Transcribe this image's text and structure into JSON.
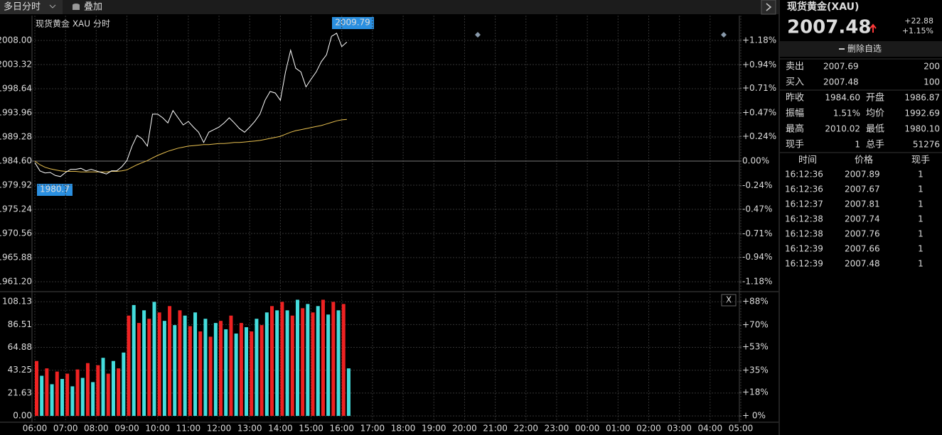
{
  "toolbar": {
    "period": "多日分时",
    "overlay": "叠加"
  },
  "volume_panel": {
    "close": "X"
  },
  "chart_data": [
    {
      "type": "line",
      "title": "现货黄金 XAU",
      "subtitle": "分时",
      "x": [
        "06:00",
        "06:10",
        "06:20",
        "06:30",
        "06:40",
        "06:50",
        "07:00",
        "07:10",
        "07:20",
        "07:30",
        "07:40",
        "07:50",
        "08:00",
        "08:10",
        "08:20",
        "08:30",
        "08:40",
        "08:50",
        "09:00",
        "09:10",
        "09:20",
        "09:30",
        "09:40",
        "09:50",
        "10:00",
        "10:10",
        "10:20",
        "10:30",
        "10:40",
        "10:50",
        "11:00",
        "11:10",
        "11:20",
        "11:30",
        "11:40",
        "11:50",
        "12:00",
        "12:10",
        "12:20",
        "12:30",
        "12:40",
        "12:50",
        "13:00",
        "13:10",
        "13:20",
        "13:30",
        "13:40",
        "13:50",
        "14:00",
        "14:10",
        "14:20",
        "14:30",
        "14:40",
        "14:50",
        "15:00",
        "15:10",
        "15:20",
        "15:30",
        "15:40",
        "15:50",
        "16:00",
        "16:10"
      ],
      "series": [
        {
          "color": "#ffffff",
          "values": [
            1984.3,
            1982.7,
            1982.3,
            1982.4,
            1981.8,
            1981.6,
            1982.4,
            1983.0,
            1983.0,
            1983.2,
            1982.7,
            1983.0,
            1982.7,
            1982.4,
            1982.1,
            1982.7,
            1982.7,
            1983.5,
            1984.7,
            1987.5,
            1989.6,
            1988.9,
            1987.5,
            1993.7,
            1993.7,
            1993.0,
            1992.0,
            1994.4,
            1993.0,
            1991.6,
            1992.3,
            1991.2,
            1990.2,
            1988.2,
            1990.2,
            1990.7,
            1991.2,
            1992.0,
            1993.0,
            1992.0,
            1990.9,
            1990.2,
            1991.2,
            1992.3,
            1993.7,
            1996.4,
            1998.1,
            1997.8,
            1996.4,
            2001.9,
            2006.1,
            2002.6,
            2001.9,
            1999.0,
            2000.5,
            2001.9,
            2003.9,
            2005.2,
            2008.8,
            2009.4,
            2006.8,
            2007.7
          ]
        },
        {
          "color": "#e8c050",
          "values": [
            1984.6,
            1983.9,
            1983.4,
            1983.1,
            1982.9,
            1982.7,
            1982.6,
            1982.6,
            1982.6,
            1982.5,
            1982.5,
            1982.5,
            1982.5,
            1982.5,
            1982.5,
            1982.6,
            1982.6,
            1982.7,
            1982.9,
            1983.4,
            1983.9,
            1984.3,
            1984.7,
            1985.2,
            1985.7,
            1986.1,
            1986.5,
            1986.8,
            1987.1,
            1987.3,
            1987.5,
            1987.6,
            1987.7,
            1987.8,
            1987.8,
            1987.9,
            1988.0,
            1988.0,
            1988.1,
            1988.2,
            1988.2,
            1988.3,
            1988.4,
            1988.5,
            1988.6,
            1988.8,
            1989.0,
            1989.2,
            1989.4,
            1989.8,
            1990.2,
            1990.5,
            1990.7,
            1990.9,
            1991.1,
            1991.3,
            1991.5,
            1991.8,
            1992.1,
            1992.4,
            1992.6,
            1992.7
          ]
        }
      ],
      "annotations": [
        2009.79,
        1980.7
      ],
      "xlim": [
        "06:00",
        "05:00"
      ],
      "ylim": [
        1959.41,
        2009.79
      ],
      "yticks": [
        {
          "value": 2008,
          "label": "2008.00"
        },
        2003.32,
        1998.64,
        1993.96,
        1989.28,
        {
          "value": 1984.6,
          "label": "1984.60"
        },
        1979.92,
        1975.24,
        1970.56,
        1965.88,
        {
          "value": 1961.2,
          "label": "1961.20"
        }
      ],
      "y2lim": [
        -1.269,
        1.269
      ],
      "y2ticks": [
        {
          "value": 1.18,
          "label": "+1.18%"
        },
        {
          "value": 0.94,
          "label": "+0.94%"
        },
        {
          "value": 0.71,
          "label": "+0.71%"
        },
        {
          "value": 0.47,
          "label": "+0.47%"
        },
        {
          "value": 0.24,
          "label": "+0.24%"
        },
        {
          "value": 0,
          "label": "0.00%"
        },
        {
          "value": -0.24,
          "label": "-0.24%"
        },
        {
          "value": -0.47,
          "label": "-0.47%"
        },
        {
          "value": -0.71,
          "label": "-0.71%"
        },
        {
          "value": -0.94,
          "label": "-0.94%"
        },
        {
          "value": -1.18,
          "label": "-1.18%"
        }
      ],
      "grid": true
    },
    {
      "type": "bar",
      "x": [
        "06:00",
        "06:10",
        "06:20",
        "06:30",
        "06:40",
        "06:50",
        "07:00",
        "07:10",
        "07:20",
        "07:30",
        "07:40",
        "07:50",
        "08:00",
        "08:10",
        "08:20",
        "08:30",
        "08:40",
        "08:50",
        "09:00",
        "09:10",
        "09:20",
        "09:30",
        "09:40",
        "09:50",
        "10:00",
        "10:10",
        "10:20",
        "10:30",
        "10:40",
        "10:50",
        "11:00",
        "11:10",
        "11:20",
        "11:30",
        "11:40",
        "11:50",
        "12:00",
        "12:10",
        "12:20",
        "12:30",
        "12:40",
        "12:50",
        "13:00",
        "13:10",
        "13:20",
        "13:30",
        "13:40",
        "13:50",
        "14:00",
        "14:10",
        "14:20",
        "14:30",
        "14:40",
        "14:50",
        "15:00",
        "15:10",
        "15:20",
        "15:30",
        "15:40",
        "15:50",
        "16:00",
        "16:10"
      ],
      "values": [
        52,
        38,
        45,
        30,
        42,
        35,
        40,
        28,
        44,
        36,
        50,
        32,
        48,
        55,
        40,
        52,
        45,
        60,
        95,
        105,
        88,
        100,
        92,
        108,
        98,
        90,
        104,
        86,
        100,
        95,
        85,
        98,
        80,
        92,
        75,
        88,
        90,
        82,
        95,
        78,
        88,
        84,
        80,
        92,
        86,
        98,
        104,
        100,
        108,
        100,
        95,
        110,
        102,
        106,
        98,
        104,
        110,
        96,
        108,
        100,
        106,
        45
      ],
      "colors": [
        "#e22",
        "#4dd",
        "#e22",
        "#4dd",
        "#e22",
        "#4dd",
        "#e22",
        "#4dd",
        "#e22",
        "#4dd",
        "#e22",
        "#4dd",
        "#e22",
        "#4dd",
        "#e22",
        "#4dd",
        "#e22",
        "#4dd",
        "#e22",
        "#4dd",
        "#e22",
        "#4dd",
        "#e22",
        "#4dd",
        "#e22",
        "#4dd",
        "#e22",
        "#4dd",
        "#e22",
        "#4dd",
        "#e22",
        "#4dd",
        "#e22",
        "#4dd",
        "#e22",
        "#4dd",
        "#e22",
        "#4dd",
        "#e22",
        "#4dd",
        "#e22",
        "#4dd",
        "#e22",
        "#4dd",
        "#e22",
        "#4dd",
        "#e22",
        "#4dd",
        "#e22",
        "#4dd",
        "#e22",
        "#4dd",
        "#e22",
        "#4dd",
        "#e22",
        "#4dd",
        "#e22",
        "#4dd",
        "#e22",
        "#4dd",
        "#e22",
        "#4dd"
      ],
      "xlim": [
        "06:00",
        "05:00"
      ],
      "xticks": [
        "06:00",
        "07:00",
        "08:00",
        "09:00",
        "10:00",
        "11:00",
        "12:00",
        "13:00",
        "14:00",
        "15:00",
        "16:00",
        "17:00",
        "18:00",
        "19:00",
        "20:00",
        "21:00",
        "22:00",
        "23:00",
        "00:00",
        "01:00",
        "02:00",
        "03:00",
        "04:00",
        "05:00"
      ],
      "ylim": [
        -6,
        117
      ],
      "yticks": [
        108.13,
        86.51,
        64.88,
        43.25,
        21.63,
        {
          "value": 0,
          "label": "0.00"
        }
      ],
      "y2lim": [
        -4.88,
        95.2
      ],
      "y2ticks": [
        {
          "value": 88,
          "label": "+88%"
        },
        {
          "value": 70,
          "label": "+70%"
        },
        {
          "value": 53,
          "label": "+53%"
        },
        {
          "value": 35,
          "label": "+35%"
        },
        {
          "value": 18,
          "label": "+18%"
        },
        {
          "value": 0,
          "label": "+ 0%"
        }
      ],
      "grid": true
    }
  ],
  "quote": {
    "title": "现货黄金(XAU)",
    "price": "2007.48",
    "change": "+22.88",
    "change_pct": "+1.15%",
    "button": "删除自选",
    "book": [
      [
        "卖出",
        "2007.69",
        "200"
      ],
      [
        "买入",
        "2007.48",
        "100"
      ]
    ],
    "stats": [
      [
        "昨收",
        "1984.60",
        "开盘",
        "1986.87"
      ],
      [
        "振幅",
        "1.51%",
        "均价",
        "1992.69"
      ],
      [
        "最高",
        "2010.02",
        "最低",
        "1980.10"
      ],
      [
        "现手",
        "1",
        "总手",
        "51276"
      ]
    ],
    "stat_colors": [
      [
        "#ffffff",
        "#ff3a3a"
      ],
      [
        "#ff3a3a",
        "#ff3a3a"
      ],
      [
        "#ff3a3a",
        "#33dd33"
      ],
      [
        "#ffd040",
        "#ffd040"
      ]
    ],
    "trades": {
      "header": [
        "时间",
        "价格",
        "现手"
      ],
      "rows": [
        [
          "16:12:36",
          "2007.89",
          "1"
        ],
        [
          "16:12:36",
          "2007.67",
          "1"
        ],
        [
          "16:12:37",
          "2007.81",
          "1"
        ],
        [
          "16:12:38",
          "2007.74",
          "1"
        ],
        [
          "16:12:38",
          "2007.76",
          "1"
        ],
        [
          "16:12:39",
          "2007.66",
          "1"
        ],
        [
          "16:12:39",
          "2007.48",
          "1"
        ]
      ],
      "qty_colors": [
        "#ffffff",
        "#33dd33",
        "#ff3a3a",
        "#33dd33",
        "#ff3a3a",
        "#33dd33",
        "#33dd33"
      ]
    }
  }
}
